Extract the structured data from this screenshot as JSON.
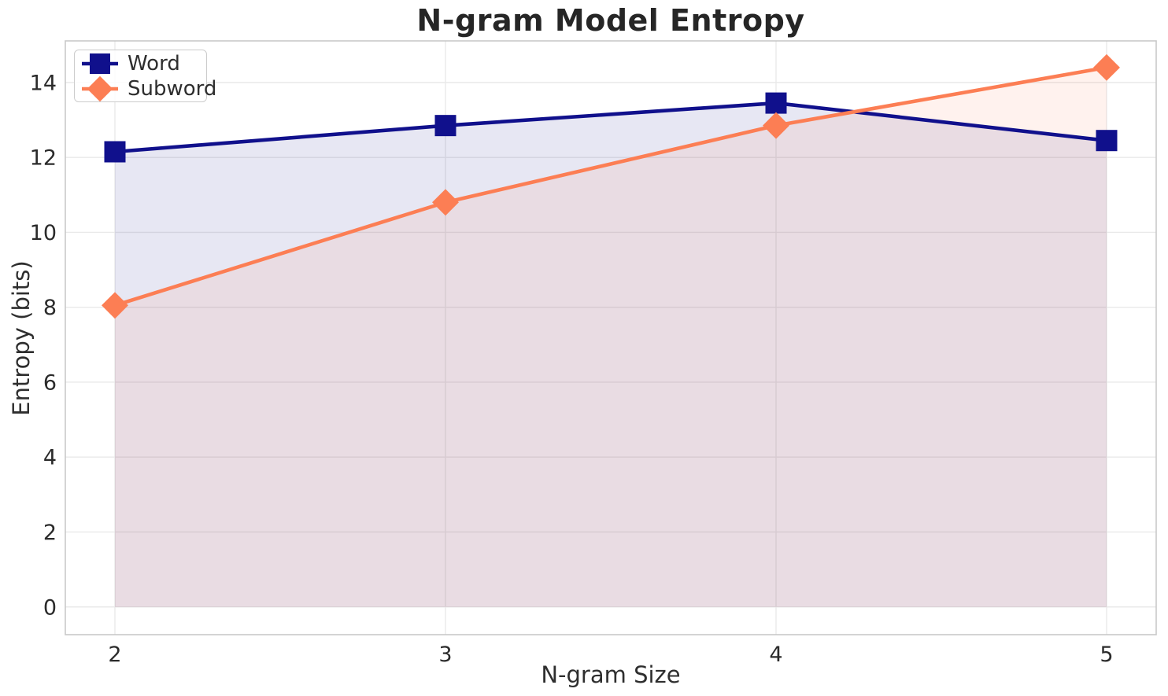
{
  "chart_data": {
    "type": "line",
    "title": "N-gram Model Entropy",
    "xlabel": "N-gram Size",
    "ylabel": "Entropy (bits)",
    "x": [
      2,
      3,
      4,
      5
    ],
    "series": [
      {
        "name": "Word",
        "marker": "square",
        "color": "#10108C",
        "values": [
          12.15,
          12.85,
          13.45,
          12.45
        ]
      },
      {
        "name": "Subword",
        "marker": "diamond",
        "color": "#FC7E54",
        "values": [
          8.05,
          10.8,
          12.85,
          14.4
        ]
      }
    ],
    "fill_to_zero": true,
    "fill_alpha": 0.1,
    "xticks": [
      2,
      3,
      4,
      5
    ],
    "yticks": [
      0,
      2,
      4,
      6,
      8,
      10,
      12,
      14
    ],
    "xlim": [
      1.85,
      5.15
    ],
    "ylim": [
      -0.74,
      15.11
    ],
    "grid": true,
    "legend_position": "upper-left",
    "grid_color": "#E9E9E9",
    "spine_color": "#C9C9C9",
    "tick_text_color": "#2B2B2B",
    "background": "#FFFFFF"
  }
}
